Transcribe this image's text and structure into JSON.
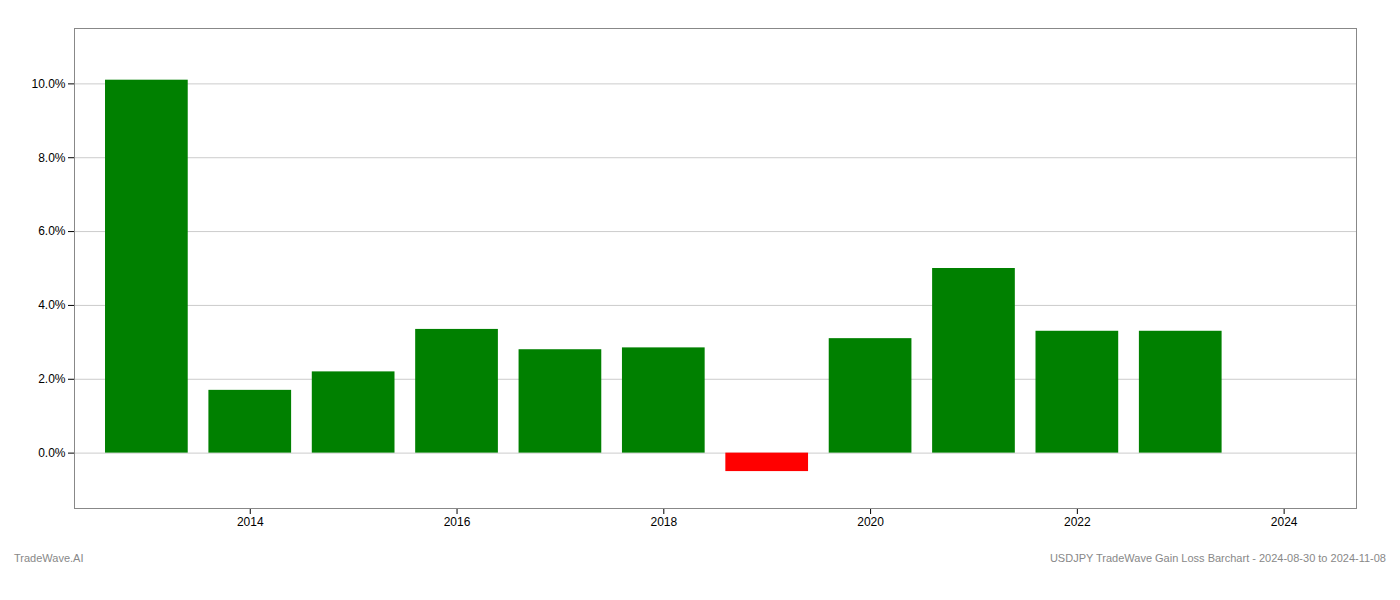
{
  "chart_data": {
    "type": "bar",
    "x": [
      2013,
      2014,
      2015,
      2016,
      2017,
      2018,
      2019,
      2020,
      2021,
      2022,
      2023
    ],
    "values": [
      0.101,
      0.017,
      0.022,
      0.0335,
      0.028,
      0.0285,
      -0.005,
      0.031,
      0.05,
      0.033,
      0.033
    ],
    "colors": [
      "#008000",
      "#008000",
      "#008000",
      "#008000",
      "#008000",
      "#008000",
      "#ff0000",
      "#008000",
      "#008000",
      "#008000",
      "#008000"
    ],
    "xlim": [
      2012.3,
      2024.7
    ],
    "xticks": [
      2014,
      2016,
      2018,
      2020,
      2022,
      2024
    ],
    "ylim": [
      -0.015,
      0.115
    ],
    "yticks": [
      {
        "value": 0.0,
        "label": "0.0%"
      },
      {
        "value": 0.02,
        "label": "2.0%"
      },
      {
        "value": 0.04,
        "label": "4.0%"
      },
      {
        "value": 0.06,
        "label": "6.0%"
      },
      {
        "value": 0.08,
        "label": "8.0%"
      },
      {
        "value": 0.1,
        "label": "10.0%"
      }
    ],
    "grid": true,
    "annotations": [
      "TradeWave.AI",
      "USDJPY TradeWave Gain Loss Barchart - 2024-08-30 to 2024-11-08"
    ]
  }
}
